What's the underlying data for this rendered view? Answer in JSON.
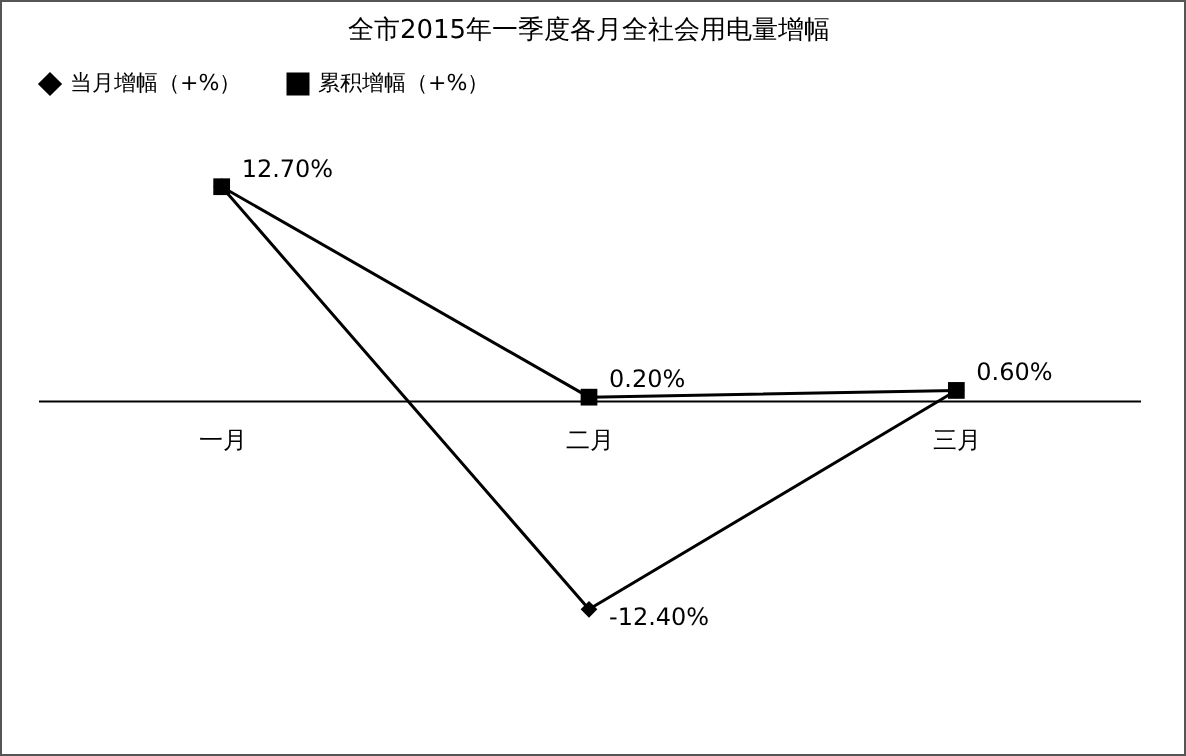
{
  "chart_data": {
    "type": "line",
    "title": "全市2015年一季度各月全社会用电量增幅",
    "categories": [
      "一月",
      "二月",
      "三月"
    ],
    "series": [
      {
        "name": "当月增幅（+%）",
        "color": "#000000",
        "marker": "diamond",
        "values": [
          12.7,
          -12.4,
          0.6
        ],
        "value_labels": [
          "12.70%",
          "-12.40%",
          "0.60%"
        ]
      },
      {
        "name": "累积增幅（+%）",
        "color": "#000000",
        "marker": "square",
        "values": [
          12.7,
          0.2,
          0.6
        ],
        "value_labels": [
          null,
          "0.20%",
          null
        ]
      }
    ],
    "legend": "top",
    "grid": false,
    "line_style": "solid"
  }
}
